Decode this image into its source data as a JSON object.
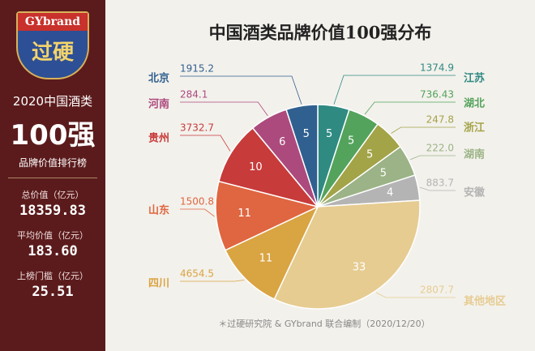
{
  "sidebar": {
    "logo_en": "GYbrand",
    "logo_cn": "过硬",
    "subtitle": "2020中国酒类",
    "headline": "100强",
    "caption": "品牌价值排行榜",
    "stats": [
      {
        "label": "总价值（亿元）",
        "value": "18359.83"
      },
      {
        "label": "平均价值（亿元）",
        "value": "183.60"
      },
      {
        "label": "上榜门槛（亿元）",
        "value": "25.51"
      }
    ]
  },
  "chart_data": {
    "type": "pie",
    "title": "中国酒类品牌价值100强分布",
    "categories": [
      "江苏",
      "湖北",
      "浙江",
      "湖南",
      "安徽",
      "其他地区",
      "四川",
      "山东",
      "贵州",
      "河南",
      "北京"
    ],
    "values": [
      5,
      5,
      5,
      5,
      4,
      33,
      11,
      11,
      10,
      6,
      5
    ],
    "colors": [
      "#2f8a82",
      "#53a35c",
      "#a3a348",
      "#9bb386",
      "#b4b4b4",
      "#e6cc91",
      "#d9a442",
      "#df6640",
      "#c73b3b",
      "#ac4a7d",
      "#30608f"
    ],
    "amounts": [
      1374.9,
      736.43,
      247.8,
      {
        "value": 222.0,
        "label": "222.0"
      },
      883.7,
      2807.7,
      4654.5,
      1500.8,
      3732.7,
      284.1,
      1915.2
    ],
    "footnote": "＊过硬研究院 & GYbrand 联合编制（2020/12/20）"
  }
}
